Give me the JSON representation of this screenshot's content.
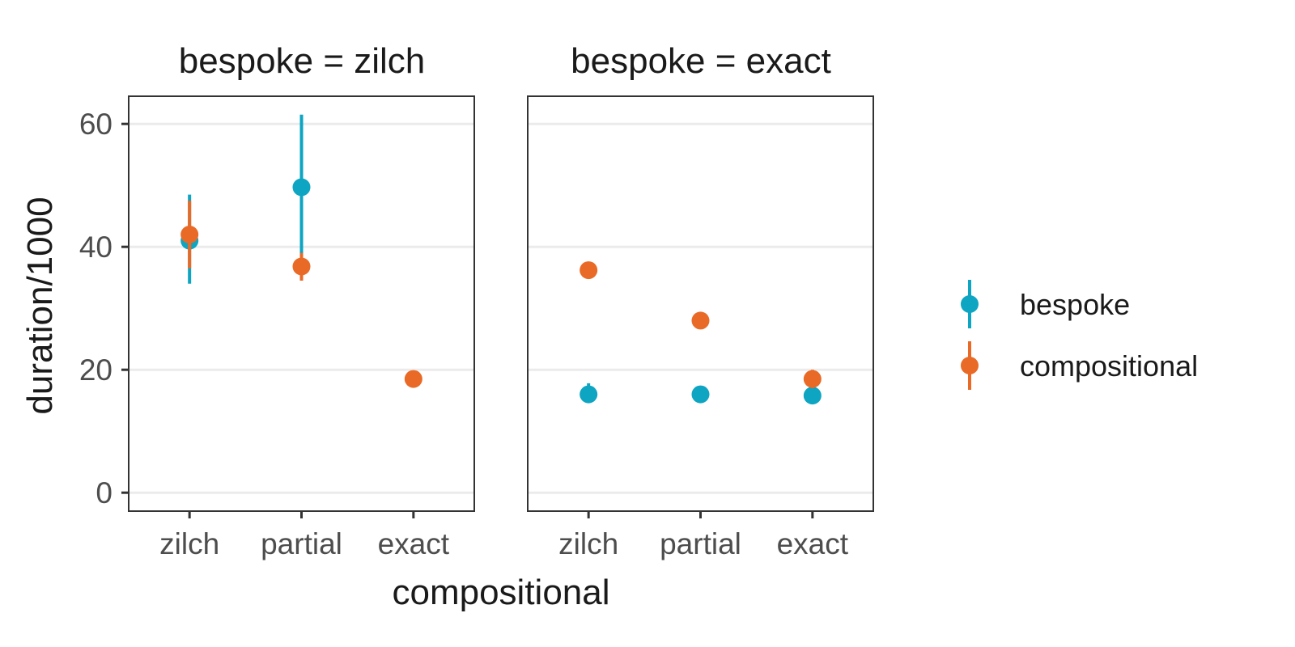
{
  "chart_data": {
    "type": "scatter",
    "ylabel": "duration/1000",
    "xlabel": "compositional",
    "categories": [
      "zilch",
      "partial",
      "exact"
    ],
    "y_ticks": [
      0,
      20,
      40,
      60
    ],
    "ylim": [
      -3,
      64.5
    ],
    "grid": "horizontal",
    "legend_position": "right",
    "colors": {
      "bespoke": "#0ea5c2",
      "compositional": "#e96a26"
    },
    "legend": [
      {
        "series": "bespoke",
        "label": "bespoke"
      },
      {
        "series": "compositional",
        "label": "compositional"
      }
    ],
    "panels": [
      {
        "title": "bespoke = zilch",
        "series": [
          {
            "name": "bespoke",
            "points": [
              {
                "x": "zilch",
                "y": 41.0,
                "lo": 34.0,
                "hi": 48.5
              },
              {
                "x": "partial",
                "y": 49.7,
                "lo": 38.0,
                "hi": 61.5
              }
            ]
          },
          {
            "name": "compositional",
            "points": [
              {
                "x": "zilch",
                "y": 42.0,
                "lo": 36.5,
                "hi": 47.5
              },
              {
                "x": "partial",
                "y": 36.8,
                "lo": 34.5,
                "hi": 39.0
              },
              {
                "x": "exact",
                "y": 18.5,
                "lo": 18.0,
                "hi": 19.0
              }
            ]
          }
        ]
      },
      {
        "title": "bespoke = exact",
        "series": [
          {
            "name": "bespoke",
            "points": [
              {
                "x": "zilch",
                "y": 16.0,
                "lo": 15.3,
                "hi": 17.8
              },
              {
                "x": "partial",
                "y": 16.0,
                "lo": 15.5,
                "hi": 16.5
              },
              {
                "x": "exact",
                "y": 15.8,
                "lo": 15.2,
                "hi": 16.4
              }
            ]
          },
          {
            "name": "compositional",
            "points": [
              {
                "x": "zilch",
                "y": 36.2,
                "lo": 35.7,
                "hi": 36.7
              },
              {
                "x": "partial",
                "y": 28.0,
                "lo": 27.5,
                "hi": 28.5
              },
              {
                "x": "exact",
                "y": 18.5,
                "lo": 17.0,
                "hi": 20.0
              }
            ]
          }
        ]
      }
    ]
  }
}
